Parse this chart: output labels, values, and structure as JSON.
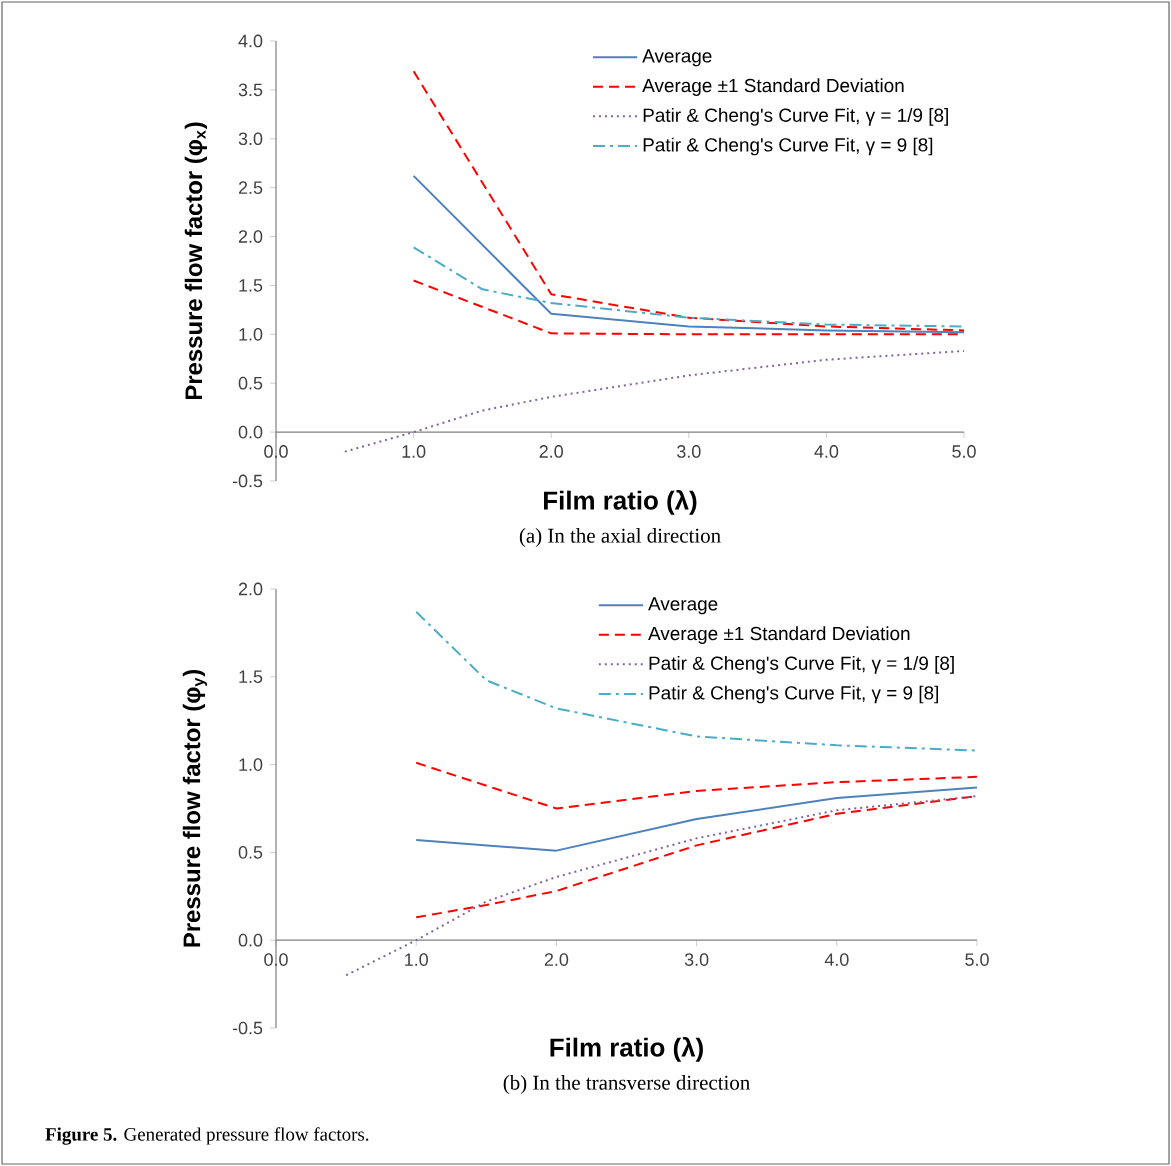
{
  "chart_data": [
    {
      "type": "line",
      "subtitle": "(a)  In the axial direction",
      "xlabel": "Film ratio (λ)",
      "ylabel": "Pressure flow factor (φ$_{x}$)",
      "x": [
        1,
        2,
        3,
        4,
        5
      ],
      "xlim": [
        0,
        5
      ],
      "xticks": [
        {
          "value": 0,
          "label": "0.0"
        },
        {
          "value": 1,
          "label": "1.0"
        },
        {
          "value": 2,
          "label": "2.0"
        },
        {
          "value": 3,
          "label": "3.0"
        },
        {
          "value": 4,
          "label": "4.0"
        },
        {
          "value": 5,
          "label": "5.0"
        }
      ],
      "ylim": [
        -0.5,
        4.0
      ],
      "yticks": [
        {
          "value": -0.5,
          "label": "-0.5"
        },
        {
          "value": 0,
          "label": "0.0"
        },
        {
          "value": 0.5,
          "label": "0.5"
        },
        {
          "value": 1,
          "label": "1.0"
        },
        {
          "value": 1.5,
          "label": "1.5"
        },
        {
          "value": 2,
          "label": "2.0"
        },
        {
          "value": 2.5,
          "label": "2.5"
        },
        {
          "value": 3,
          "label": "3.0"
        },
        {
          "value": 3.5,
          "label": "3.5"
        },
        {
          "value": 4,
          "label": "4.0"
        }
      ],
      "legend": "top right",
      "marker": "none",
      "series": [
        {
          "name": "Average",
          "color": "#4f81bd",
          "line_style": "solid",
          "values": [
            2.62,
            1.21,
            1.08,
            1.04,
            1.02
          ]
        },
        {
          "name": "Average ±1 Standard Deviation",
          "color": "#ff0000",
          "line_style": "dashed",
          "values": [
            3.69,
            1.41,
            1.17,
            1.08,
            1.04
          ]
        },
        {
          "color": "#ff0000",
          "line_style": "dashed",
          "values": [
            1.55,
            1.01,
            1.0,
            1.0,
            1.0
          ]
        },
        {
          "name": "Patir & Cheng's Curve Fit, γ = 1/9 [8]",
          "color": "#8064a2",
          "line_style": "dotted",
          "x": [
            0.5,
            1,
            1.5,
            2,
            3,
            4,
            5
          ],
          "values": [
            -0.2,
            0.0,
            0.22,
            0.36,
            0.58,
            0.74,
            0.83
          ]
        },
        {
          "name": "Patir & Cheng's Curve Fit, γ = 9 [8]",
          "color": "#4bacc6",
          "line_style": "dashdot",
          "x": [
            1,
            1.5,
            2,
            3,
            4,
            5
          ],
          "values": [
            1.89,
            1.46,
            1.32,
            1.17,
            1.1,
            1.08
          ]
        }
      ]
    },
    {
      "type": "line",
      "subtitle": "(b)  In the transverse direction",
      "xlabel": "Film ratio (λ)",
      "ylabel": "Pressure flow factor (φ$_{y}$)",
      "annotations": [
        "**Figure 5.** Generated pressure flow factors."
      ],
      "x": [
        1,
        2,
        3,
        4,
        5
      ],
      "xlim": [
        0,
        5
      ],
      "xticks": [
        {
          "value": 0,
          "label": "0.0"
        },
        {
          "value": 1,
          "label": "1.0"
        },
        {
          "value": 2,
          "label": "2.0"
        },
        {
          "value": 3,
          "label": "3.0"
        },
        {
          "value": 4,
          "label": "4.0"
        },
        {
          "value": 5,
          "label": "5.0"
        }
      ],
      "ylim": [
        -0.5,
        2.0
      ],
      "yticks": [
        {
          "value": -0.5,
          "label": "-0.5"
        },
        {
          "value": 0,
          "label": "0.0"
        },
        {
          "value": 0.5,
          "label": "0.5"
        },
        {
          "value": 1,
          "label": "1.0"
        },
        {
          "value": 1.5,
          "label": "1.5"
        },
        {
          "value": 2,
          "label": "2.0"
        }
      ],
      "legend": "top right",
      "marker": "none",
      "series": [
        {
          "name": "Average",
          "color": "#4f81bd",
          "line_style": "solid",
          "values": [
            0.57,
            0.51,
            0.69,
            0.81,
            0.87
          ]
        },
        {
          "name": "Average ±1 Standard Deviation",
          "color": "#ff0000",
          "line_style": "dashed",
          "values": [
            1.01,
            0.75,
            0.85,
            0.9,
            0.93
          ]
        },
        {
          "color": "#ff0000",
          "line_style": "dashed",
          "x": [
            1,
            1.5,
            2,
            3,
            4,
            5
          ],
          "values": [
            0.13,
            0.2,
            0.28,
            0.54,
            0.72,
            0.82
          ]
        },
        {
          "name": "Patir & Cheng's Curve Fit, γ = 1/9 [8]",
          "color": "#8064a2",
          "line_style": "dotted",
          "x": [
            0.5,
            1,
            1.5,
            2,
            3,
            4,
            5
          ],
          "values": [
            -0.2,
            0.0,
            0.22,
            0.36,
            0.58,
            0.74,
            0.82
          ]
        },
        {
          "name": "Patir & Cheng's Curve Fit, γ = 9 [8]",
          "color": "#4bacc6",
          "line_style": "dashdot",
          "x": [
            1,
            1.5,
            2,
            3,
            4,
            5
          ],
          "values": [
            1.87,
            1.48,
            1.32,
            1.16,
            1.11,
            1.08
          ]
        }
      ]
    }
  ]
}
